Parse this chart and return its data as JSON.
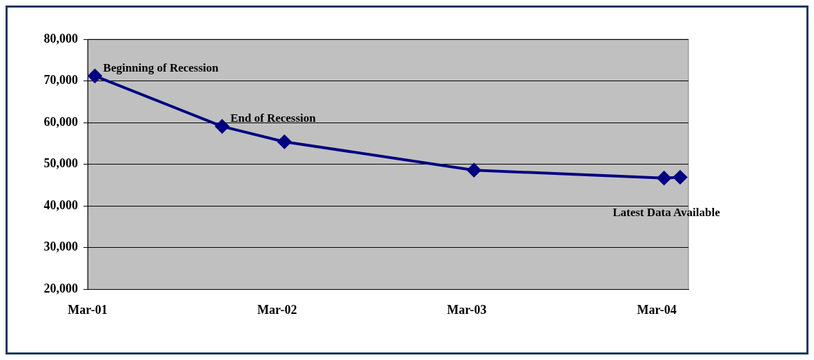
{
  "chart_data": {
    "type": "line",
    "x": [
      "2001-03-15",
      "2001-11-15",
      "2002-03-15",
      "2003-03-15",
      "2004-03-15",
      "2004-04-15"
    ],
    "series": [
      {
        "color": "#000080",
        "values": [
          71200,
          59100,
          55400,
          48600,
          46700,
          46900
        ]
      }
    ],
    "xlim": [
      "2001-03-01",
      "2004-05-01"
    ],
    "xticks": [
      {
        "value": "2001-03-01",
        "label": "Mar-01"
      },
      {
        "value": "2002-03-01",
        "label": "Mar-02"
      },
      {
        "value": "2003-03-01",
        "label": "Mar-03"
      },
      {
        "value": "2004-03-01",
        "label": "Mar-04"
      }
    ],
    "ylim": [
      20000,
      80000
    ],
    "yticks": [
      {
        "value": 20000,
        "label": "20,000"
      },
      {
        "value": 30000,
        "label": "30,000"
      },
      {
        "value": 40000,
        "label": "40,000"
      },
      {
        "value": 50000,
        "label": "50,000"
      },
      {
        "value": 60000,
        "label": "60,000"
      },
      {
        "value": 70000,
        "label": "70,000"
      },
      {
        "value": 80000,
        "label": "80,000"
      }
    ],
    "grid": "y",
    "legend": false,
    "marker": "diamond",
    "line_style": "solid",
    "annotations": [
      {
        "text": "Beginning of Recession",
        "x": "2001-03-15",
        "y": 71200
      },
      {
        "text": "End of Recession",
        "x": "2001-11-15",
        "y": 59100
      },
      {
        "text": "Latest Data Available",
        "x": "2004-04-15",
        "y": 46900
      }
    ]
  }
}
